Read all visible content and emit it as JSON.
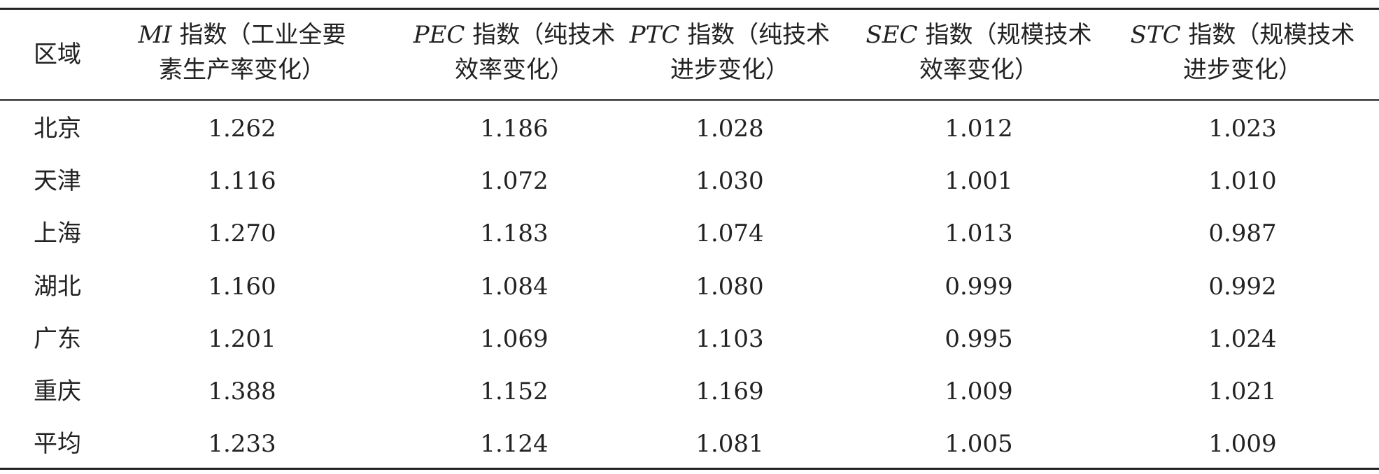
{
  "table": {
    "header": {
      "region": "区域",
      "columns": [
        {
          "abbr": "MI",
          "line1": "指数（工业全要",
          "line2": "素生产率变化）"
        },
        {
          "abbr": "PEC",
          "line1": "指数（纯技术",
          "line2": "效率变化）"
        },
        {
          "abbr": "PTC",
          "line1": "指数（纯技术",
          "line2": "进步变化）"
        },
        {
          "abbr": "SEC",
          "line1": "指数（规模技术",
          "line2": "效率变化）"
        },
        {
          "abbr": "STC",
          "line1": "指数（规模技术",
          "line2": "进步变化）"
        }
      ]
    },
    "rows": [
      [
        "北京",
        "1.262",
        "1.186",
        "1.028",
        "1.012",
        "1.023"
      ],
      [
        "天津",
        "1.116",
        "1.072",
        "1.030",
        "1.001",
        "1.010"
      ],
      [
        "上海",
        "1.270",
        "1.183",
        "1.074",
        "1.013",
        "0.987"
      ],
      [
        "湖北",
        "1.160",
        "1.084",
        "1.080",
        "0.999",
        "0.992"
      ],
      [
        "广东",
        "1.201",
        "1.069",
        "1.103",
        "0.995",
        "1.024"
      ],
      [
        "重庆",
        "1.388",
        "1.152",
        "1.169",
        "1.009",
        "1.021"
      ],
      [
        "平均",
        "1.233",
        "1.124",
        "1.081",
        "1.005",
        "1.009"
      ]
    ]
  }
}
